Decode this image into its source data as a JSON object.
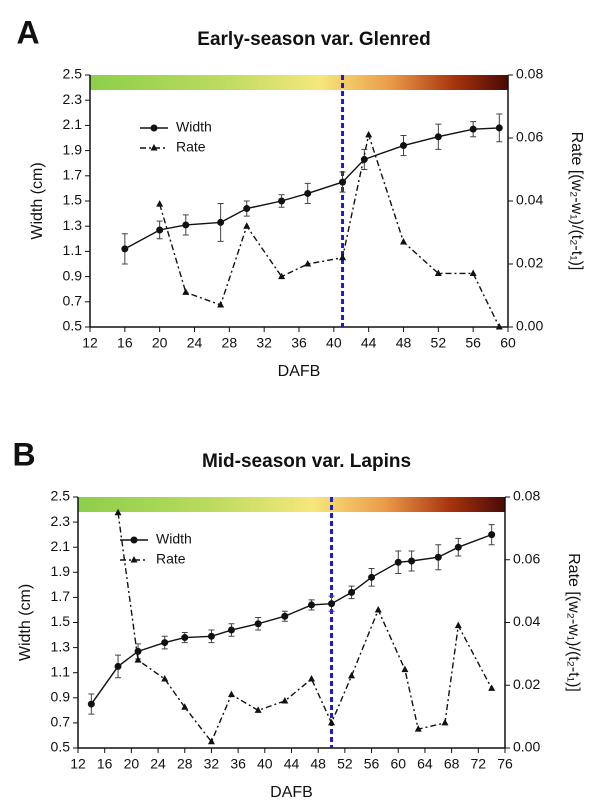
{
  "chart_data": [
    {
      "type": "line",
      "panel_label": "A",
      "title": "Early-season var. Glenred",
      "x_label": "DAFB",
      "y_label": "Width (cm)",
      "y2_label": "Rate [(w₂-w₁)/(t₂-t₁)]",
      "xlim": [
        12,
        60
      ],
      "xticks": [
        12,
        16,
        20,
        24,
        28,
        32,
        36,
        40,
        44,
        48,
        52,
        56,
        60
      ],
      "ylim": [
        0.5,
        2.5
      ],
      "yticks": [
        0.5,
        0.7,
        0.9,
        1.1,
        1.3,
        1.5,
        1.7,
        1.9,
        2.1,
        2.3,
        2.5
      ],
      "y2lim": [
        0,
        0.08
      ],
      "y2ticks": [
        {
          "value": 0,
          "label": "0.00"
        },
        {
          "value": 0.02,
          "label": "0.02"
        },
        {
          "value": 0.04,
          "label": "0.04"
        },
        {
          "value": 0.06,
          "label": "0.06"
        },
        {
          "value": 0.08,
          "label": "0.08"
        }
      ],
      "vline": {
        "value": 41,
        "color": "#1c1cc8"
      },
      "legend": "upper left",
      "series": [
        {
          "name": "Width",
          "color": "#111111",
          "marker": "circle",
          "linestyle": "solid",
          "x": [
            16,
            20,
            23,
            27,
            30,
            34,
            37,
            41,
            43.5,
            48,
            52,
            56,
            59
          ],
          "values": [
            1.12,
            1.27,
            1.31,
            1.33,
            1.44,
            1.5,
            1.56,
            1.65,
            1.83,
            1.94,
            2.01,
            2.07,
            2.08
          ],
          "errors": [
            0.12,
            0.07,
            0.08,
            0.15,
            0.06,
            0.05,
            0.08,
            0.08,
            0.08,
            0.08,
            0.1,
            0.06,
            0.11
          ]
        },
        {
          "name": "Rate",
          "color": "#111111",
          "marker": "triangle",
          "linestyle": "dashdot",
          "axis": "y2",
          "x": [
            20,
            23,
            27,
            30,
            34,
            37,
            41,
            44,
            48,
            52,
            56,
            59
          ],
          "values": [
            0.039,
            0.011,
            0.007,
            0.032,
            0.016,
            0.02,
            0.022,
            0.061,
            0.027,
            0.017,
            0.017,
            0.0
          ]
        }
      ]
    },
    {
      "type": "line",
      "panel_label": "B",
      "title": "Mid-season var. Lapins",
      "x_label": "DAFB",
      "y_label": "Width (cm)",
      "y2_label": "Rate [(w₂-w₁)/(t₂-t₁)]",
      "xlim": [
        12,
        76
      ],
      "xticks": [
        12,
        16,
        20,
        24,
        28,
        32,
        36,
        40,
        44,
        48,
        52,
        56,
        60,
        64,
        68,
        72,
        76
      ],
      "ylim": [
        0.5,
        2.5
      ],
      "yticks": [
        0.5,
        0.7,
        0.9,
        1.1,
        1.3,
        1.5,
        1.7,
        1.9,
        2.1,
        2.3,
        2.5
      ],
      "y2lim": [
        0,
        0.08
      ],
      "y2ticks": [
        {
          "value": 0,
          "label": "0.00"
        },
        {
          "value": 0.02,
          "label": "0.02"
        },
        {
          "value": 0.04,
          "label": "0.04"
        },
        {
          "value": 0.06,
          "label": "0.06"
        },
        {
          "value": 0.08,
          "label": "0.08"
        }
      ],
      "vline": {
        "value": 50,
        "color": "#1c1cc8"
      },
      "legend": "upper left",
      "series": [
        {
          "name": "Width",
          "color": "#111111",
          "marker": "circle",
          "linestyle": "solid",
          "x": [
            14,
            18,
            21,
            25,
            28,
            32,
            35,
            39,
            43,
            47,
            50,
            53,
            56,
            60,
            62,
            66,
            69,
            74
          ],
          "values": [
            0.85,
            1.15,
            1.27,
            1.34,
            1.38,
            1.39,
            1.44,
            1.49,
            1.55,
            1.64,
            1.65,
            1.74,
            1.86,
            1.98,
            1.99,
            2.02,
            2.1,
            2.2
          ],
          "errors": [
            0.08,
            0.09,
            0.06,
            0.05,
            0.04,
            0.05,
            0.05,
            0.05,
            0.04,
            0.04,
            0.06,
            0.05,
            0.07,
            0.09,
            0.08,
            0.1,
            0.07,
            0.08
          ]
        },
        {
          "name": "Rate",
          "color": "#111111",
          "marker": "triangle",
          "linestyle": "dashdot",
          "axis": "y2",
          "x": [
            18,
            21,
            25,
            28,
            32,
            35,
            39,
            43,
            47,
            50,
            53,
            57,
            61,
            63,
            67,
            69,
            74
          ],
          "values": [
            0.075,
            0.028,
            0.022,
            0.013,
            0.002,
            0.017,
            0.012,
            0.015,
            0.022,
            0.008,
            0.023,
            0.044,
            0.025,
            0.006,
            0.008,
            0.039,
            0.019
          ]
        }
      ]
    }
  ]
}
